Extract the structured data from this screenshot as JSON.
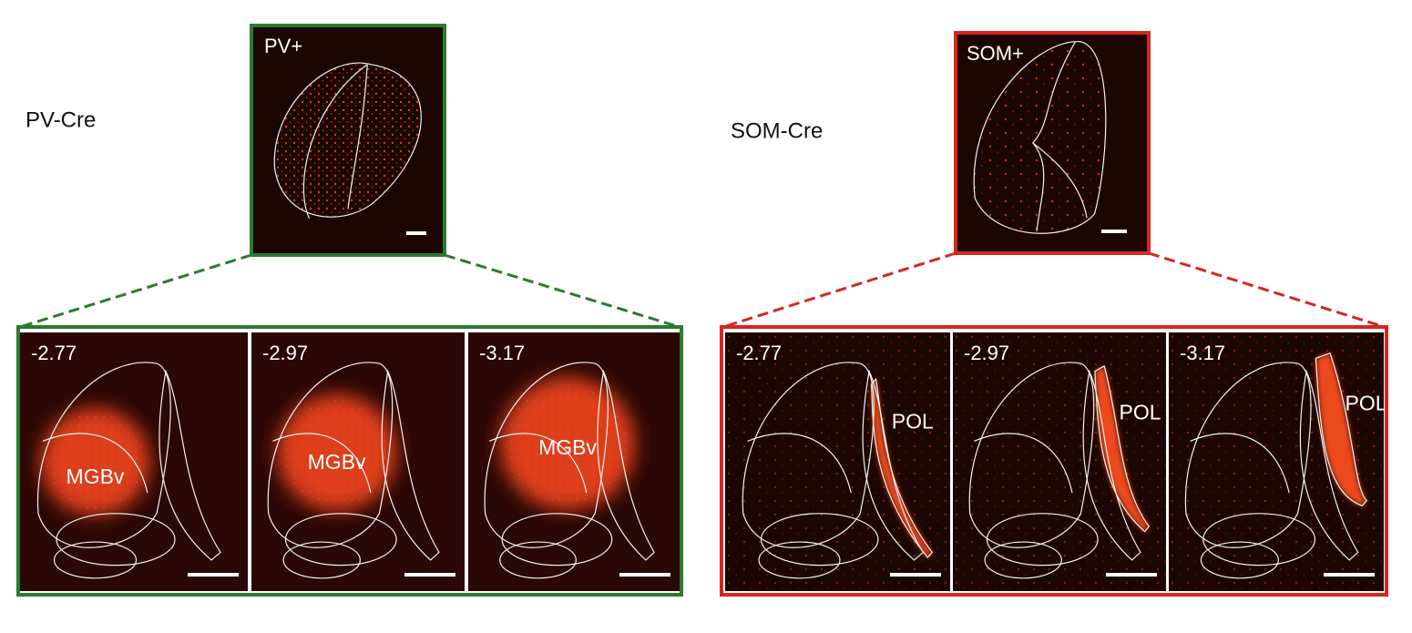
{
  "left": {
    "label": "PV-Cre",
    "overview": {
      "label": "PV+"
    },
    "sections": [
      {
        "coordinate": "-2.77",
        "region": "MGBv"
      },
      {
        "coordinate": "-2.97",
        "region": "MGBv"
      },
      {
        "coordinate": "-3.17",
        "region": "MGBv"
      }
    ]
  },
  "right": {
    "label": "SOM-Cre",
    "overview": {
      "label": "SOM+"
    },
    "sections": [
      {
        "coordinate": "-2.77",
        "region": "POL"
      },
      {
        "coordinate": "-2.97",
        "region": "POL"
      },
      {
        "coordinate": "-3.17",
        "region": "POL"
      }
    ]
  }
}
